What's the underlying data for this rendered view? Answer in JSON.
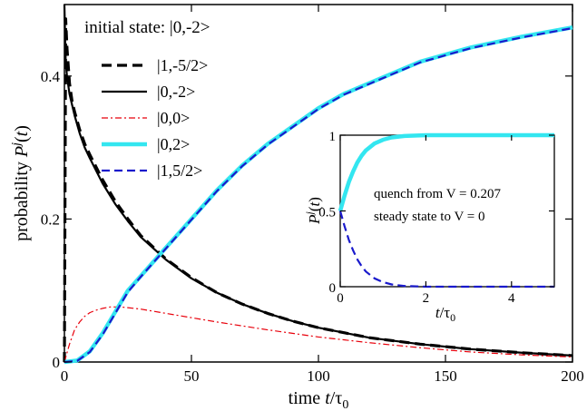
{
  "chart_data": [
    {
      "type": "line",
      "annotation": "initial state: |0,-2>",
      "xlabel_parts": [
        "time ",
        "t",
        "/τ",
        "0"
      ],
      "ylabel_parts": [
        "probability ",
        "P",
        "j",
        "(",
        "t",
        ")"
      ],
      "xlim": [
        0,
        200
      ],
      "ylim": [
        0,
        0.5
      ],
      "xticks": [
        0,
        50,
        100,
        150,
        200
      ],
      "xtick_labels": [
        "0",
        "50",
        "100",
        "150",
        "200"
      ],
      "yticks": [
        0,
        0.2,
        0.4
      ],
      "ytick_labels": [
        "0",
        "0.2",
        "0.4"
      ],
      "grid": false,
      "legend_position": "top-left",
      "series": [
        {
          "name": "|1,-5/2>",
          "color": "#000000",
          "style": "dashed-thick",
          "x": [
            0,
            0.5,
            1,
            2,
            3,
            4,
            6,
            8,
            10,
            15,
            20,
            25,
            30,
            40,
            50,
            60,
            70,
            80,
            90,
            100,
            120,
            140,
            160,
            180,
            200
          ],
          "y": [
            0.0,
            0.48,
            0.44,
            0.39,
            0.365,
            0.35,
            0.325,
            0.305,
            0.29,
            0.255,
            0.225,
            0.2,
            0.177,
            0.144,
            0.118,
            0.097,
            0.081,
            0.068,
            0.057,
            0.048,
            0.034,
            0.025,
            0.018,
            0.013,
            0.009
          ]
        },
        {
          "name": "|0,-2>",
          "color": "#000000",
          "style": "solid",
          "x": [
            0,
            0.5,
            1,
            2,
            3,
            4,
            6,
            8,
            10,
            15,
            20,
            25,
            30,
            40,
            50,
            60,
            70,
            80,
            90,
            100,
            120,
            140,
            160,
            180,
            200
          ],
          "y": [
            0.5,
            0.42,
            0.4,
            0.375,
            0.36,
            0.345,
            0.32,
            0.3,
            0.285,
            0.25,
            0.221,
            0.197,
            0.175,
            0.143,
            0.117,
            0.097,
            0.081,
            0.068,
            0.057,
            0.048,
            0.034,
            0.025,
            0.018,
            0.013,
            0.009
          ]
        },
        {
          "name": "|0,0>",
          "color": "#e8000b",
          "style": "dashdot",
          "x": [
            0,
            2,
            4,
            6,
            8,
            10,
            12,
            15,
            18,
            20,
            22,
            25,
            30,
            40,
            50,
            60,
            80,
            100,
            120,
            140,
            160,
            180,
            200
          ],
          "y": [
            0.0,
            0.025,
            0.045,
            0.056,
            0.064,
            0.069,
            0.072,
            0.075,
            0.077,
            0.077,
            0.077,
            0.076,
            0.074,
            0.068,
            0.062,
            0.056,
            0.045,
            0.035,
            0.027,
            0.02,
            0.014,
            0.01,
            0.007
          ]
        },
        {
          "name": "|0,2>",
          "color": "#33e6f0",
          "style": "solid-thick",
          "x": [
            0,
            5,
            10,
            15,
            20,
            25,
            30,
            35,
            40,
            50,
            60,
            70,
            80,
            90,
            100,
            110,
            120,
            140,
            160,
            180,
            200
          ],
          "y": [
            0.0,
            0.002,
            0.015,
            0.04,
            0.07,
            0.1,
            0.12,
            0.14,
            0.16,
            0.2,
            0.24,
            0.275,
            0.305,
            0.33,
            0.355,
            0.375,
            0.39,
            0.42,
            0.44,
            0.455,
            0.468
          ]
        },
        {
          "name": "|1,5/2>",
          "color": "#1a1acc",
          "style": "dashed",
          "x": [
            0,
            5,
            10,
            15,
            20,
            25,
            30,
            35,
            40,
            50,
            60,
            70,
            80,
            90,
            100,
            110,
            120,
            140,
            160,
            180,
            200
          ],
          "y": [
            0.0,
            0.0015,
            0.014,
            0.038,
            0.068,
            0.098,
            0.119,
            0.139,
            0.159,
            0.199,
            0.239,
            0.274,
            0.304,
            0.329,
            0.354,
            0.374,
            0.389,
            0.419,
            0.439,
            0.454,
            0.467
          ]
        }
      ]
    },
    {
      "type": "line",
      "annotation_lines": [
        "quench from V = 0.207",
        "steady state to V = 0"
      ],
      "xlabel_parts": [
        "t",
        "/τ",
        "0"
      ],
      "ylabel_parts": [
        "P",
        "j",
        "(",
        "t",
        ")"
      ],
      "xlim": [
        0,
        5
      ],
      "ylim": [
        0,
        1
      ],
      "xticks": [
        0,
        2,
        4
      ],
      "xtick_labels": [
        "0",
        "2",
        "4"
      ],
      "yticks": [
        0,
        0.5,
        1
      ],
      "ytick_labels": [
        "0",
        "0.5",
        "1"
      ],
      "series": [
        {
          "color": "#33e6f0",
          "style": "solid-thick",
          "x": [
            0,
            0.1,
            0.2,
            0.3,
            0.4,
            0.5,
            0.6,
            0.8,
            1.0,
            1.2,
            1.5,
            2.0,
            2.5,
            3,
            4,
            5
          ],
          "y": [
            0.5,
            0.6,
            0.69,
            0.76,
            0.82,
            0.865,
            0.9,
            0.945,
            0.97,
            0.985,
            0.995,
            1.0,
            1.0,
            1.0,
            1.0,
            1.0
          ]
        },
        {
          "color": "#1a1acc",
          "style": "dashed",
          "x": [
            0,
            0.1,
            0.2,
            0.3,
            0.4,
            0.5,
            0.6,
            0.8,
            1.0,
            1.2,
            1.5,
            2.0,
            2.5,
            3,
            4,
            5
          ],
          "y": [
            0.5,
            0.4,
            0.31,
            0.24,
            0.18,
            0.135,
            0.1,
            0.055,
            0.03,
            0.015,
            0.005,
            0.0,
            0.0,
            0.0,
            0.0,
            0.0
          ]
        }
      ]
    }
  ]
}
